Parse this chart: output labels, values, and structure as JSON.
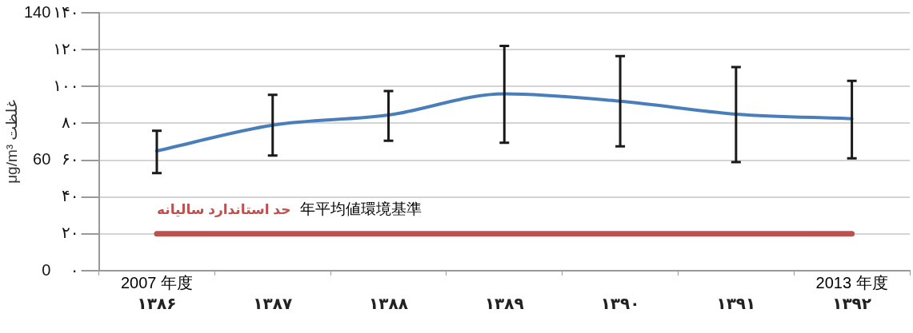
{
  "chart_data": {
    "type": "line",
    "y2label": "μg/m³ غلظت",
    "categories": [
      "۱۳۸۶",
      "۱۳۸۷",
      "۱۳۸۸",
      "۱۳۸۹",
      "۱۳۹۰",
      "۱۳۹۱",
      "۱۳۹۲"
    ],
    "series": [
      {
        "color": "#4a7ebb",
        "values": [
          65,
          79,
          84.5,
          96,
          92,
          85,
          82.5
        ],
        "errors": [
          [
            53,
            76
          ],
          [
            62.5,
            95.5
          ],
          [
            70.5,
            97.5
          ],
          [
            69.5,
            122
          ],
          [
            67.5,
            116.5
          ],
          [
            59,
            110.5
          ],
          [
            61,
            103
          ]
        ]
      }
    ],
    "ylim": [
      0,
      140
    ],
    "yticks": [
      {
        "value": 0,
        "label": "۰"
      },
      {
        "value": 20,
        "label": "۲۰"
      },
      {
        "value": 40,
        "label": "۴۰"
      },
      {
        "value": 60,
        "label": "۶۰"
      },
      {
        "value": 80,
        "label": "۸۰"
      },
      {
        "value": 100,
        "label": "۱۰۰"
      },
      {
        "value": 120,
        "label": "۱۲۰"
      },
      {
        "value": 140,
        "label": "۱۴۰"
      }
    ],
    "y2lim": [
      0,
      140
    ],
    "y2ticks": [
      0,
      60,
      140
    ],
    "grid": "y",
    "legend": false,
    "marker": "none",
    "line_style": "solid",
    "ref_lines": [
      {
        "axis": "y",
        "value": 20,
        "label": "حد استاندارد سالیانه",
        "color": "#c0504d"
      }
    ],
    "annotations": [
      "年平均値環境基準",
      "2007 年度",
      "2013 年度"
    ]
  }
}
